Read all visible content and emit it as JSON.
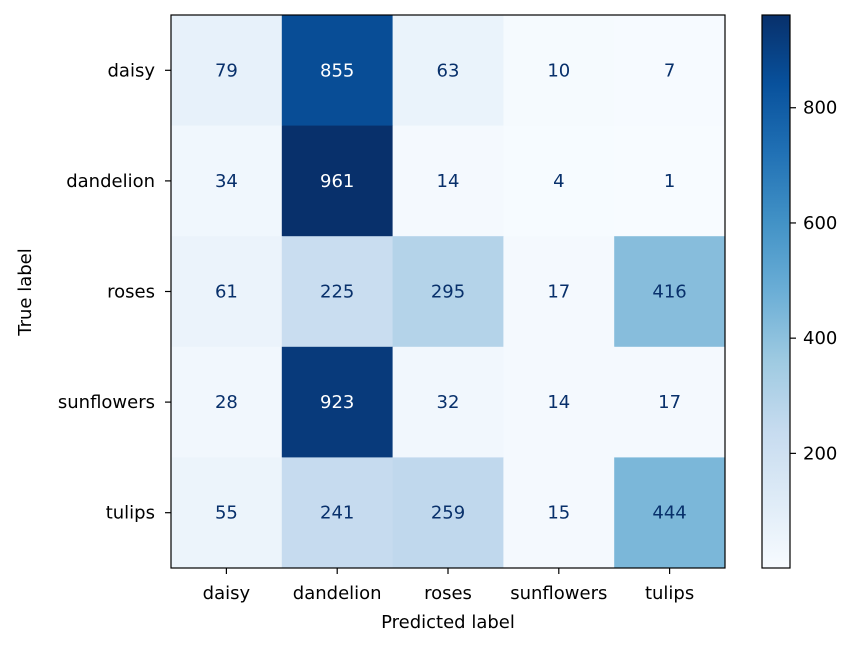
{
  "chart_data": {
    "type": "heatmap",
    "title": "",
    "xlabel": "Predicted label",
    "ylabel": "True label",
    "x_categories": [
      "daisy",
      "dandelion",
      "roses",
      "sunflowers",
      "tulips"
    ],
    "y_categories": [
      "daisy",
      "dandelion",
      "roses",
      "sunflowers",
      "tulips"
    ],
    "values": [
      [
        79,
        855,
        63,
        10,
        7
      ],
      [
        34,
        961,
        14,
        4,
        1
      ],
      [
        61,
        225,
        295,
        17,
        416
      ],
      [
        28,
        923,
        32,
        14,
        17
      ],
      [
        55,
        241,
        259,
        15,
        444
      ]
    ],
    "colormap": "Blues",
    "color_min": 1,
    "color_max": 961,
    "colorbar_ticks": [
      200,
      400,
      600,
      800
    ],
    "colorbar_tick_labels": [
      "200",
      "400",
      "600",
      "800"
    ],
    "light_text_color": "#ffffff",
    "dark_text_color": "#08306b"
  }
}
